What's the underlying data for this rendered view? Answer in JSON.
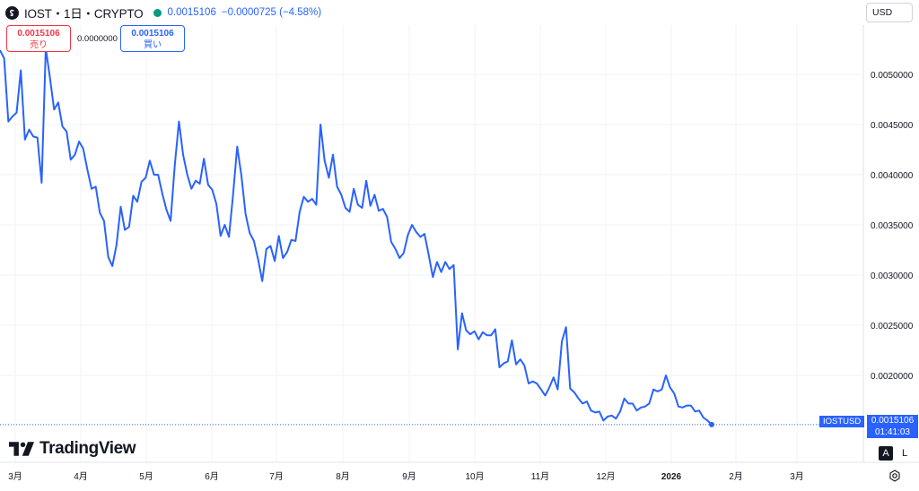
{
  "header": {
    "symbol": "IOST・1日・CRYPTO",
    "price": "0.0015106",
    "change": "−0.0000725 (−4.58%)",
    "logo_icon": "iost-logo-icon",
    "status_color": "#089981"
  },
  "trade": {
    "sell_price": "0.0015106",
    "sell_label": "売り",
    "spread": "0.0000000",
    "buy_price": "0.0015106",
    "buy_label": "買い"
  },
  "currency": "USD",
  "price_tag": {
    "symbol": "IOSTUSD",
    "price": "0.0015106",
    "countdown": "01:41:03"
  },
  "brand": "TradingView",
  "scale_buttons": {
    "auto": "A",
    "log": "L"
  },
  "colors": {
    "line": "#2962ff",
    "grid": "#f0f3fa",
    "axis_text": "#131722",
    "sell": "#f23645",
    "buy": "#2962ff"
  },
  "chart_data": {
    "type": "line",
    "title": "IOST・1日・CRYPTO",
    "ylabel": "",
    "xlabel": "",
    "ylim": [
      0.0015,
      0.0055
    ],
    "grid": true,
    "y_ticks": [
      "0.0050000",
      "0.0045000",
      "0.0040000",
      "0.0035000",
      "0.0030000",
      "0.0025000",
      "0.0020000"
    ],
    "y_tick_values": [
      0.005,
      0.0045,
      0.004,
      0.0035,
      0.003,
      0.0025,
      0.002
    ],
    "x_ticks": [
      "3月",
      "4月",
      "5月",
      "6月",
      "7月",
      "8月",
      "9月",
      "10月",
      "11月",
      "12月",
      "2026",
      "2月",
      "3月"
    ],
    "x_tick_bold": [
      false,
      false,
      false,
      false,
      false,
      false,
      false,
      false,
      false,
      false,
      true,
      false,
      false
    ],
    "series": [
      {
        "values": [
          0.00524,
          0.00516,
          0.00453,
          0.00458,
          0.00462,
          0.00504,
          0.00435,
          0.00445,
          0.00438,
          0.00437,
          0.00392,
          0.00526,
          0.00497,
          0.00465,
          0.00472,
          0.00448,
          0.00443,
          0.00415,
          0.0042,
          0.00433,
          0.00426,
          0.00405,
          0.00386,
          0.00388,
          0.00362,
          0.00354,
          0.00318,
          0.00309,
          0.0033,
          0.00368,
          0.00345,
          0.00348,
          0.00379,
          0.00373,
          0.00393,
          0.00397,
          0.00414,
          0.004,
          0.004,
          0.00381,
          0.00365,
          0.00354,
          0.0041,
          0.00453,
          0.0042,
          0.004,
          0.00386,
          0.00394,
          0.00391,
          0.00416,
          0.0039,
          0.00385,
          0.00371,
          0.00339,
          0.0035,
          0.00338,
          0.0038,
          0.00428,
          0.00399,
          0.00361,
          0.00342,
          0.00334,
          0.00316,
          0.00294,
          0.00326,
          0.00329,
          0.00314,
          0.00339,
          0.00317,
          0.00323,
          0.00335,
          0.00334,
          0.00363,
          0.00378,
          0.00373,
          0.00376,
          0.0037,
          0.0045,
          0.00414,
          0.00397,
          0.0042,
          0.00388,
          0.0038,
          0.00367,
          0.00363,
          0.00386,
          0.0037,
          0.00367,
          0.00394,
          0.00369,
          0.0038,
          0.00364,
          0.00366,
          0.00358,
          0.00333,
          0.00326,
          0.00317,
          0.00322,
          0.0034,
          0.0035,
          0.00343,
          0.00338,
          0.00341,
          0.0032,
          0.00298,
          0.00313,
          0.00303,
          0.00313,
          0.00306,
          0.0031,
          0.00226,
          0.00262,
          0.00245,
          0.00241,
          0.00244,
          0.00236,
          0.00243,
          0.0024,
          0.0024,
          0.00246,
          0.00208,
          0.00212,
          0.00214,
          0.00235,
          0.00211,
          0.00216,
          0.0021,
          0.00192,
          0.00194,
          0.00192,
          0.00186,
          0.0018,
          0.00188,
          0.00198,
          0.00186,
          0.00234,
          0.00248,
          0.00187,
          0.00183,
          0.00177,
          0.00172,
          0.00174,
          0.00165,
          0.00163,
          0.00164,
          0.00155,
          0.00159,
          0.0016,
          0.00157,
          0.00164,
          0.00177,
          0.00172,
          0.00172,
          0.00165,
          0.00168,
          0.00169,
          0.00172,
          0.00186,
          0.00184,
          0.00186,
          0.002,
          0.00188,
          0.00182,
          0.00169,
          0.00168,
          0.0017,
          0.0017,
          0.00164,
          0.00165,
          0.00158,
          0.00155,
          0.00151
        ]
      }
    ],
    "last_value": 0.0015106
  }
}
